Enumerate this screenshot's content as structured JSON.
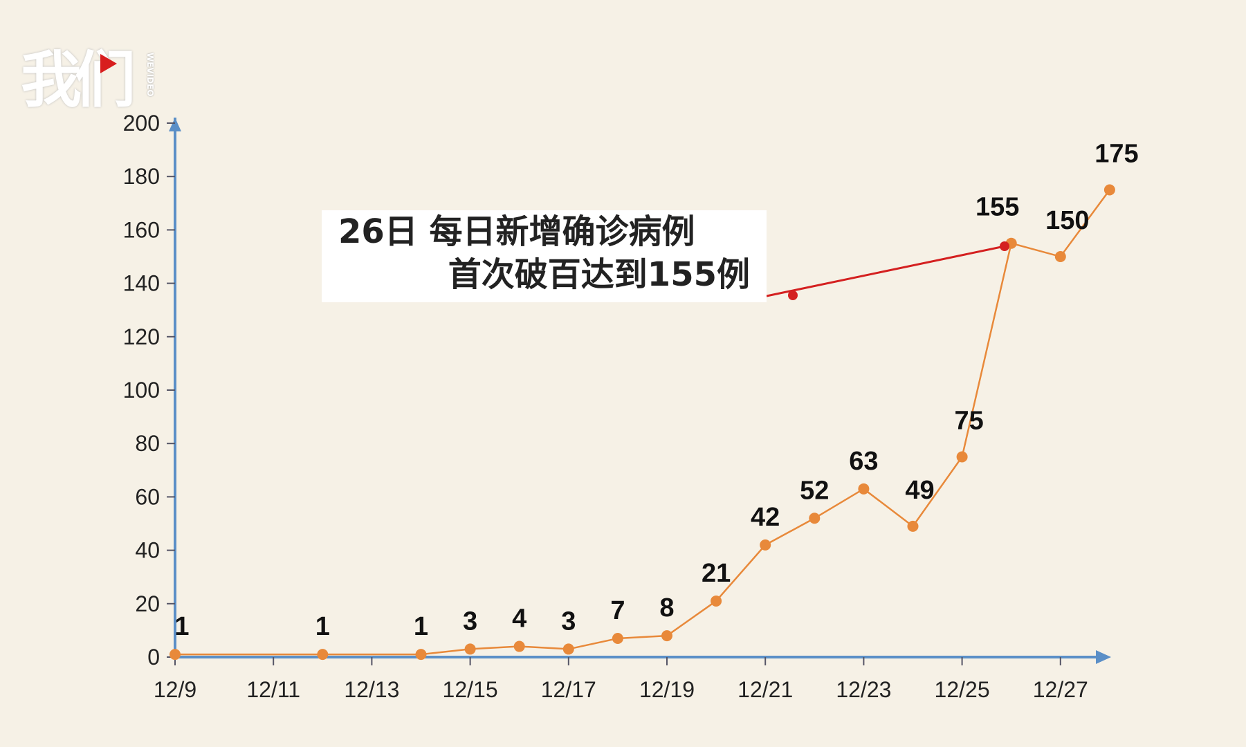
{
  "watermark": {
    "text": "我们",
    "subtext": "WEVIDEO"
  },
  "annotation": {
    "line1": "26日 每日新增确诊病例",
    "line2": "首次破百达到155例"
  },
  "chart_data": {
    "type": "line",
    "title": "",
    "xlabel": "",
    "ylabel": "",
    "x": [
      "12/9",
      "12/12",
      "12/14",
      "12/15",
      "12/16",
      "12/17",
      "12/18",
      "12/19",
      "12/20",
      "12/21",
      "12/22",
      "12/23",
      "12/24",
      "12/25",
      "12/26",
      "12/27",
      "12/28"
    ],
    "values": [
      1,
      1,
      1,
      3,
      4,
      3,
      7,
      8,
      21,
      42,
      52,
      63,
      49,
      75,
      155,
      150,
      175
    ],
    "x_ticks": [
      "12/9",
      "12/11",
      "12/13",
      "12/15",
      "12/17",
      "12/19",
      "12/21",
      "12/23",
      "12/25",
      "12/27"
    ],
    "y_ticks": [
      0,
      20,
      40,
      60,
      80,
      100,
      120,
      140,
      160,
      180,
      200
    ],
    "ylim": [
      0,
      200
    ],
    "grid": false,
    "colors": {
      "line": "#e8893a",
      "marker": "#e8893a",
      "axis": "#5b8fc7",
      "annotation_line": "#d42020"
    }
  }
}
